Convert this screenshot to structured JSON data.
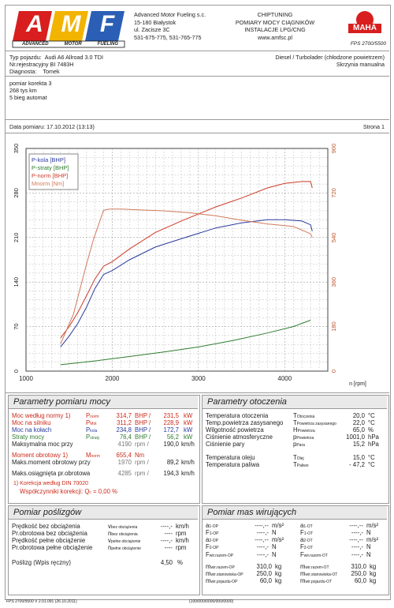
{
  "company": {
    "name": "Advanced Motor Fueling s.c.",
    "address1": "15-180 Białystok",
    "address2": "ul. Zacisze 3C",
    "phones": "531-675-775, 531-765-775",
    "service1": "CHIPTUNING",
    "service2": "POMIARY MOCY CIĄGNIKÓW",
    "service3": "INSTALACJE LPG/CNG",
    "website": "www.amfsc.pl",
    "logo_letters": [
      "A",
      "M",
      "F"
    ],
    "logo_words": [
      "DVANCED",
      "OTOR",
      "UELING"
    ],
    "maha_badge": "MAHA",
    "maha_model": "FPS 2700/5500"
  },
  "vehicle": {
    "type_label": "Typ pojazdu:",
    "type_value": "Audi A6 Allroad 3.0 TDI",
    "reg_label": "Nr.rejestracyjny",
    "reg_value": "BI 7483H",
    "diag_label": "Diagnosta:",
    "diag_value": "Tomek",
    "engine": "Diesel / Turbolader (chłodzone powietrzem)",
    "gearbox": "Skrzynia manualna"
  },
  "notes": [
    "pomiar korekta 3",
    "268 tys km",
    "5 bieg automat"
  ],
  "meta": {
    "date": "Data pomiaru: 17.10.2012 (13:13)",
    "page": "Strona 1"
  },
  "chart_data": {
    "type": "line",
    "x_label": "n [rpm]",
    "xlim": [
      1000,
      4500
    ],
    "ylim_left": [
      0,
      350
    ],
    "ylim_right": [
      0,
      900
    ],
    "x_ticks": [
      "1000",
      "2000",
      "3000",
      "4000"
    ],
    "y_ticks_left": [
      "0",
      "70",
      "140",
      "210",
      "280",
      "350"
    ],
    "y_ticks_right": [
      "0",
      "180",
      "360",
      "540",
      "720",
      "900"
    ],
    "grid": true,
    "legend_position": "top-left",
    "series": [
      {
        "name": "P-kola [BHP]",
        "axis": "left",
        "color": "#2a3a9c",
        "x": [
          1400,
          1500,
          1600,
          1700,
          1800,
          1900,
          2000,
          2200,
          2500,
          2800,
          3200,
          3500,
          3800,
          4000,
          4200,
          4300,
          4320
        ],
        "y": [
          38,
          55,
          75,
          100,
          130,
          152,
          158,
          175,
          195,
          208,
          225,
          233,
          238,
          238,
          236,
          230,
          220
        ]
      },
      {
        "name": "P-straty [BHP]",
        "axis": "left",
        "color": "#2f7c2f",
        "x": [
          1400,
          1800,
          2200,
          2600,
          3000,
          3400,
          3800,
          4100,
          4300
        ],
        "y": [
          10,
          16,
          23,
          30,
          38,
          48,
          60,
          70,
          80
        ]
      },
      {
        "name": "P-norm [BHP]",
        "axis": "left",
        "color": "#cc3a2a",
        "x": [
          1400,
          1500,
          1600,
          1700,
          1800,
          1900,
          2000,
          2200,
          2500,
          2800,
          3200,
          3500,
          3800,
          4000,
          4200,
          4300,
          4320
        ],
        "y": [
          52,
          70,
          92,
          118,
          145,
          165,
          172,
          192,
          218,
          236,
          258,
          272,
          288,
          295,
          298,
          298,
          288
        ]
      },
      {
        "name": "Mnorm [Nm]",
        "axis": "right",
        "color": "#d27a5a",
        "x": [
          1400,
          1550,
          1700,
          1780,
          1850,
          1900,
          1970,
          2100,
          2300,
          2600,
          2900,
          3200,
          3500,
          3800,
          4100,
          4300,
          4320
        ],
        "y": [
          110,
          230,
          430,
          530,
          600,
          650,
          655,
          655,
          652,
          648,
          640,
          628,
          610,
          595,
          585,
          555,
          540
        ]
      }
    ]
  },
  "measure": {
    "title": "Parametry pomiaru mocy",
    "rows": [
      {
        "label": "Moc według normy",
        "sup": "1)",
        "sym": "P",
        "sub": "norm",
        "v1": "314,7",
        "u1": "BHP",
        "v2": "231,5",
        "u2": "kW"
      },
      {
        "label": "Moc na silniku",
        "sup": "",
        "sym": "P",
        "sub": "Mot",
        "v1": "311,2",
        "u1": "BHP",
        "v2": "228,9",
        "u2": "kW"
      },
      {
        "label": "Moc na kołach",
        "sup": "",
        "sym": "P",
        "sub": "kola",
        "v1": "234,8",
        "u1": "BHP",
        "v2": "172,7",
        "u2": "kW"
      },
      {
        "label": "Straty mocy",
        "sup": "",
        "sym": "P",
        "sub": "straty",
        "v1": "76,4",
        "u1": "BHP",
        "v2": "56,2",
        "u2": "kW"
      }
    ],
    "maxspeed_label": "Maksymalna moc przy",
    "maxspeed_rpm": "4190",
    "maxspeed_rpm_unit": "rpm",
    "maxspeed_v": "190,0",
    "maxspeed_unit": "km/h",
    "torque_label": "Moment obrotowy",
    "torque_sup": "1)",
    "torque_sym": "M",
    "torque_sub": "norm",
    "torque_value": "655,4",
    "torque_unit": "Nm",
    "maxtorque_label": "Maks.moment obrotowy przy",
    "maxtorque_rpm": "1970",
    "maxtorque_rpm_unit": "rpm",
    "maxtorque_v": "89,2",
    "maxtorque_unit": "km/h",
    "maxrpm_label": "Maks.osiągnięta pr.obrotowa",
    "maxrpm_rpm": "4285",
    "maxrpm_rpm_unit": "rpm",
    "maxrpm_v": "194,3",
    "maxrpm_unit": "km/h",
    "correction": "1) Korekcja według DIN 70020",
    "correction_coef_label": "Współczynniki korekcji: Q",
    "correction_coef_sub": "c",
    "correction_coef_value": "= 0,00 %"
  },
  "env": {
    "title": "Parametry otoczenia",
    "rows": [
      {
        "label": "Temperatura otoczenia",
        "sym": "T",
        "sub": "Otoczenia",
        "value": "20,0",
        "unit": "°C"
      },
      {
        "label": "Temp.powietrza zasysanego",
        "sym": "T",
        "sub": "Powietrza zasysanego",
        "value": "22,0",
        "unit": "°C"
      },
      {
        "label": "Wilgotność powietrza",
        "sym": "H",
        "sub": "Powietrza",
        "value": "65,0",
        "unit": "%"
      },
      {
        "label": "Ciśnienie atmosferyczne",
        "sym": "p",
        "sub": "Powietrza",
        "value": "1001,0",
        "unit": "hPa"
      },
      {
        "label": "Ciśnienie pary",
        "sym": "p",
        "sub": "Para",
        "value": "15,2",
        "unit": "hPa"
      },
      {
        "label": "Temperatura oleju",
        "sym": "T",
        "sub": "Olej",
        "value": "15,0",
        "unit": "°C"
      },
      {
        "label": "Temperatura paliwa",
        "sym": "T",
        "sub": "Paliwo",
        "value": "- 47,2",
        "unit": "°C"
      }
    ]
  },
  "slip": {
    "title": "Pomiar poślizgów",
    "rows": [
      {
        "label": "Prędkość bez obciążenia",
        "sym": "v",
        "sub": "bez obciążenia",
        "value": "----,-",
        "unit": "km/h"
      },
      {
        "label": "Pr.obrotowa bez obciążenia",
        "sym": "n",
        "sub": "bez obciążenia",
        "value": "----",
        "unit": "rpm"
      },
      {
        "label": "Prędkość pełne obciążenie",
        "sym": "v",
        "sub": "pełne obciążenie",
        "value": "----,-",
        "unit": "km/h"
      },
      {
        "label": "Pr.obrotowa pełne obciążenie",
        "sym": "n",
        "sub": "pełne obciążenie",
        "value": "----",
        "unit": "rpm"
      }
    ],
    "slip_label": "Poślizg (Wpis ręczny)",
    "slip_value": "4,50",
    "slip_unit": "%"
  },
  "mass": {
    "title": "Pomiar mas wirujących",
    "left": [
      {
        "sym": "a",
        "sub": "1-OP",
        "value": "----,--",
        "unit": "m/s²"
      },
      {
        "sym": "F",
        "sub": "1-OP",
        "value": "----,-",
        "unit": "N"
      },
      {
        "sym": "a",
        "sub": "2-OP",
        "value": "----,--",
        "unit": "m/s²"
      },
      {
        "sym": "F",
        "sub": "2-OP",
        "value": "----,-",
        "unit": "N"
      },
      {
        "sym": "F",
        "sub": "wir.razem-OP",
        "value": "----,-",
        "unit": "N"
      }
    ],
    "right": [
      {
        "sym": "a",
        "sub": "1-OT",
        "value": "----,--",
        "unit": "m/s²"
      },
      {
        "sym": "F",
        "sub": "1-OT",
        "value": "----,-",
        "unit": "N"
      },
      {
        "sym": "a",
        "sub": "2-OT",
        "value": "----,--",
        "unit": "m/s²"
      },
      {
        "sym": "F",
        "sub": "2-OT",
        "value": "----,-",
        "unit": "N"
      },
      {
        "sym": "F",
        "sub": "wir.razem-OT",
        "value": "----,-",
        "unit": "N"
      }
    ],
    "kg_left": [
      {
        "sym": "m",
        "sub": "wir.razem-OP",
        "value": "310,0",
        "unit": "kg"
      },
      {
        "sym": "m",
        "sub": "wir.stanowiska-OP",
        "value": "250,0",
        "unit": "kg"
      },
      {
        "sym": "m",
        "sub": "wir.pojazdu-OP",
        "value": "60,0",
        "unit": "kg"
      }
    ],
    "kg_right": [
      {
        "sym": "m",
        "sub": "wir.razem-OT",
        "value": "310,0",
        "unit": "kg"
      },
      {
        "sym": "m",
        "sub": "wir.stanowiska-OT",
        "value": "250,0",
        "unit": "kg"
      },
      {
        "sym": "m",
        "sub": "wir.pojazdu-OT",
        "value": "60,0",
        "unit": "kg"
      }
    ]
  },
  "footer": {
    "left": "FPS 2700/5500 V 2.01.091 (26.10.2011)",
    "center": "(100/000/0000/000/0000)"
  }
}
